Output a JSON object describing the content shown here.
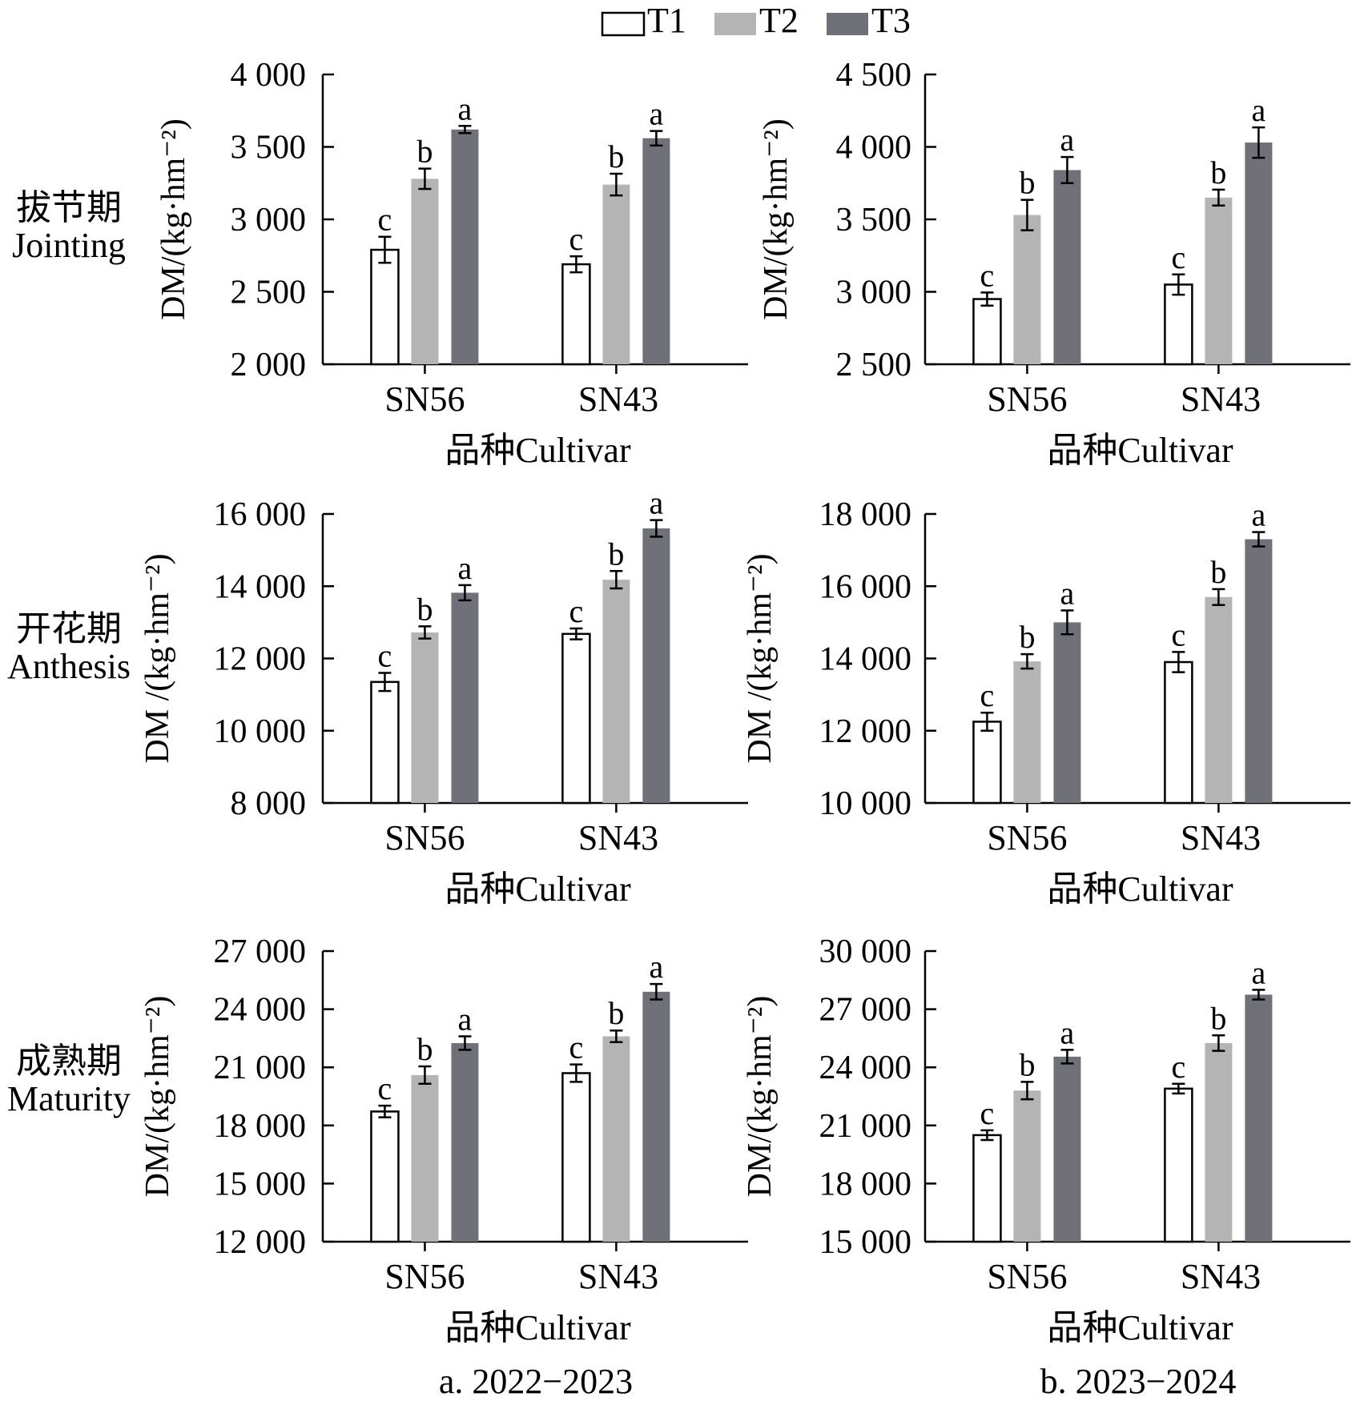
{
  "legend": [
    {
      "name": "T1",
      "color": "#ffffff"
    },
    {
      "name": "T2",
      "color": "#b4b4b4"
    },
    {
      "name": "T3",
      "color": "#6f7078"
    }
  ],
  "row_labels": [
    {
      "cn": "拔节期",
      "en": "Jointing"
    },
    {
      "cn": "开花期",
      "en": "Anthesis"
    },
    {
      "cn": "成熟期",
      "en": "Maturity"
    }
  ],
  "column_captions": [
    "a. 2022−2023",
    "b. 2023−2024"
  ],
  "colors": {
    "T1": "#ffffff",
    "T2": "#b4b4b4",
    "T3": "#6f7078",
    "axis": "#000000"
  },
  "chart_data": [
    {
      "type": "bar",
      "panel": "a-jointing",
      "title": "",
      "categories": [
        "SN56",
        "SN43"
      ],
      "xlabel": "品种Cultivar",
      "ylabel": "DM/(kg·hm⁻²)",
      "ylim": [
        2000,
        4000
      ],
      "yticks": [
        2000,
        2500,
        3000,
        3500,
        4000
      ],
      "ytick_labels": [
        "2 000",
        "2 500",
        "3 000",
        "3 500",
        "4 000"
      ],
      "series": [
        {
          "name": "T1",
          "values": [
            2790,
            2690
          ],
          "errors": [
            90,
            55
          ],
          "letters": [
            "c",
            "c"
          ]
        },
        {
          "name": "T2",
          "values": [
            3280,
            3240
          ],
          "errors": [
            70,
            75
          ],
          "letters": [
            "b",
            "b"
          ]
        },
        {
          "name": "T3",
          "values": [
            3620,
            3560
          ],
          "errors": [
            25,
            50
          ],
          "letters": [
            "a",
            "a"
          ]
        }
      ]
    },
    {
      "type": "bar",
      "panel": "b-jointing",
      "title": "",
      "categories": [
        "SN56",
        "SN43"
      ],
      "xlabel": "品种Cultivar",
      "ylabel": "DM/(kg·hm⁻²)",
      "ylim": [
        2500,
        4500
      ],
      "yticks": [
        2500,
        3000,
        3500,
        4000,
        4500
      ],
      "ytick_labels": [
        "2 500",
        "3 000",
        "3 500",
        "4 000",
        "4 500"
      ],
      "series": [
        {
          "name": "T1",
          "values": [
            2950,
            3050
          ],
          "errors": [
            45,
            70
          ],
          "letters": [
            "c",
            "c"
          ]
        },
        {
          "name": "T2",
          "values": [
            3530,
            3650
          ],
          "errors": [
            105,
            55
          ],
          "letters": [
            "b",
            "b"
          ]
        },
        {
          "name": "T3",
          "values": [
            3840,
            4030
          ],
          "errors": [
            90,
            105
          ],
          "letters": [
            "a",
            "a"
          ]
        }
      ]
    },
    {
      "type": "bar",
      "panel": "a-anthesis",
      "title": "",
      "categories": [
        "SN56",
        "SN43"
      ],
      "xlabel": "品种Cultivar",
      "ylabel": "DM /(kg·hm⁻²)",
      "ylim": [
        8000,
        16000
      ],
      "yticks": [
        8000,
        10000,
        12000,
        14000,
        16000
      ],
      "ytick_labels": [
        "8 000",
        "10 000",
        "12 000",
        "14 000",
        "16 000"
      ],
      "series": [
        {
          "name": "T1",
          "values": [
            11350,
            12680
          ],
          "errors": [
            250,
            150
          ],
          "letters": [
            "c",
            "c"
          ]
        },
        {
          "name": "T2",
          "values": [
            12720,
            14180
          ],
          "errors": [
            170,
            240
          ],
          "letters": [
            "b",
            "b"
          ]
        },
        {
          "name": "T3",
          "values": [
            13820,
            15600
          ],
          "errors": [
            210,
            230
          ],
          "letters": [
            "a",
            "a"
          ]
        }
      ]
    },
    {
      "type": "bar",
      "panel": "b-anthesis",
      "title": "",
      "categories": [
        "SN56",
        "SN43"
      ],
      "xlabel": "品种Cultivar",
      "ylabel": "DM /(kg·hm⁻²)",
      "ylim": [
        10000,
        18000
      ],
      "yticks": [
        10000,
        12000,
        14000,
        16000,
        18000
      ],
      "ytick_labels": [
        "10 000",
        "12 000",
        "14 000",
        "16 000",
        "18 000"
      ],
      "series": [
        {
          "name": "T1",
          "values": [
            12250,
            13900
          ],
          "errors": [
            250,
            280
          ],
          "letters": [
            "c",
            "c"
          ]
        },
        {
          "name": "T2",
          "values": [
            13920,
            15700
          ],
          "errors": [
            200,
            220
          ],
          "letters": [
            "b",
            "b"
          ]
        },
        {
          "name": "T3",
          "values": [
            15000,
            17300
          ],
          "errors": [
            330,
            200
          ],
          "letters": [
            "a",
            "a"
          ]
        }
      ]
    },
    {
      "type": "bar",
      "panel": "a-maturity",
      "title": "",
      "categories": [
        "SN56",
        "SN43"
      ],
      "xlabel": "品种Cultivar",
      "ylabel": "DM/(kg·hm⁻²)",
      "ylim": [
        12000,
        27000
      ],
      "yticks": [
        12000,
        15000,
        18000,
        21000,
        24000,
        27000
      ],
      "ytick_labels": [
        "12 000",
        "15 000",
        "18 000",
        "21 000",
        "24 000",
        "27 000"
      ],
      "series": [
        {
          "name": "T1",
          "values": [
            18720,
            20700
          ],
          "errors": [
            300,
            450
          ],
          "letters": [
            "c",
            "c"
          ]
        },
        {
          "name": "T2",
          "values": [
            20600,
            22600
          ],
          "errors": [
            450,
            300
          ],
          "letters": [
            "b",
            "b"
          ]
        },
        {
          "name": "T3",
          "values": [
            22250,
            24900
          ],
          "errors": [
            350,
            400
          ],
          "letters": [
            "a",
            "a"
          ]
        }
      ]
    },
    {
      "type": "bar",
      "panel": "b-maturity",
      "title": "",
      "categories": [
        "SN56",
        "SN43"
      ],
      "xlabel": "品种Cultivar",
      "ylabel": "DM/(kg·hm⁻²)",
      "ylim": [
        15000,
        30000
      ],
      "yticks": [
        15000,
        18000,
        21000,
        24000,
        27000,
        30000
      ],
      "ytick_labels": [
        "15 000",
        "18 000",
        "21 000",
        "24 000",
        "27 000",
        "30 000"
      ],
      "series": [
        {
          "name": "T1",
          "values": [
            20500,
            22900
          ],
          "errors": [
            250,
            250
          ],
          "letters": [
            "c",
            "c"
          ]
        },
        {
          "name": "T2",
          "values": [
            22800,
            25250
          ],
          "errors": [
            450,
            400
          ],
          "letters": [
            "b",
            "b"
          ]
        },
        {
          "name": "T3",
          "values": [
            24550,
            27750
          ],
          "errors": [
            350,
            250
          ],
          "letters": [
            "a",
            "a"
          ]
        }
      ]
    }
  ]
}
